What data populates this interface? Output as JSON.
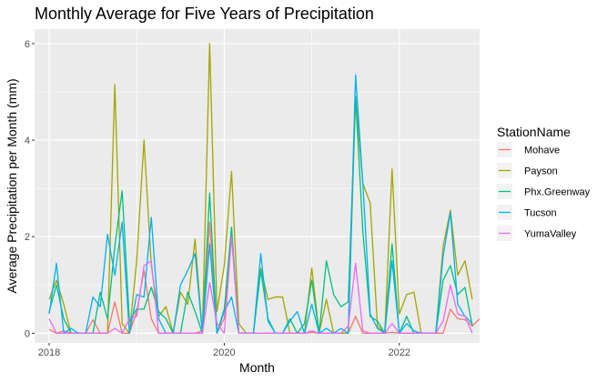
{
  "chart_data": {
    "type": "line",
    "title": "Monthly Average for Five Years of Precipitation",
    "xlabel": "Month",
    "ylabel": "Average Precipitation per Month (mm)",
    "x_start": "2018-01",
    "x_ticks": [
      {
        "label": "2018",
        "month": "2018-01"
      },
      {
        "label": "2020",
        "month": "2020-01"
      },
      {
        "label": "2022",
        "month": "2022-01"
      }
    ],
    "xlim": [
      "2017-11",
      "2022-12"
    ],
    "ylim": [
      -0.2,
      6.3
    ],
    "y_ticks": [
      0,
      2,
      4,
      6
    ],
    "grid": true,
    "legend": {
      "title": "StationName",
      "position": "right"
    },
    "series": [
      {
        "name": "Mohave",
        "color": "#F8766D",
        "values": [
          0.08,
          0.0,
          0.05,
          0.0,
          0.0,
          0.0,
          0.28,
          0.0,
          0.0,
          0.65,
          0.0,
          0.0,
          0.45,
          1.3,
          0.3,
          0.0,
          0.0,
          0.0,
          0.0,
          0.0,
          0.0,
          0.05,
          2.3,
          0.0,
          0.3,
          2.1,
          0.0,
          0.0,
          0.0,
          0.0,
          0.0,
          0.0,
          0.0,
          0.0,
          0.0,
          0.0,
          0.02,
          0.0,
          0.0,
          0.0,
          0.0,
          0.0,
          0.35,
          0.0,
          0.0,
          0.0,
          0.0,
          0.02,
          0.0,
          0.0,
          0.0,
          0.0,
          0.0,
          0.0,
          0.0,
          0.5,
          0.3,
          0.28,
          0.15,
          0.3
        ]
      },
      {
        "name": "Payson",
        "color": "#A3A500",
        "values": [
          0.7,
          1.1,
          0.6,
          0.0,
          0.0,
          0.0,
          0.0,
          0.0,
          0.0,
          5.15,
          0.2,
          0.0,
          1.5,
          4.0,
          1.4,
          0.35,
          0.55,
          0.0,
          0.85,
          0.6,
          1.95,
          0.0,
          6.0,
          0.45,
          1.4,
          3.35,
          0.2,
          0.0,
          0.0,
          1.35,
          0.7,
          0.75,
          0.75,
          0.0,
          0.0,
          0.0,
          1.35,
          0.0,
          0.7,
          0.0,
          0.0,
          0.0,
          4.9,
          3.1,
          2.7,
          0.15,
          0.0,
          3.4,
          0.4,
          0.8,
          0.85,
          0.0,
          0.0,
          0.0,
          1.8,
          2.55,
          1.2,
          1.5,
          0.7
        ]
      },
      {
        "name": "Phx.Greenway",
        "color": "#00BF7D",
        "values": [
          0.45,
          1.0,
          0.3,
          0.0,
          0.0,
          0.0,
          0.0,
          0.85,
          0.3,
          1.8,
          2.95,
          0.25,
          0.5,
          0.5,
          0.95,
          0.45,
          0.3,
          0.0,
          0.0,
          0.85,
          0.45,
          0.0,
          2.9,
          0.0,
          0.5,
          2.2,
          0.0,
          0.0,
          0.0,
          1.3,
          0.3,
          0.0,
          0.0,
          0.3,
          0.0,
          0.2,
          1.1,
          0.0,
          1.5,
          0.8,
          0.55,
          0.65,
          4.9,
          2.1,
          0.35,
          0.25,
          0.0,
          1.85,
          0.0,
          0.35,
          0.0,
          0.0,
          0.0,
          0.0,
          1.1,
          1.4,
          0.8,
          0.95,
          0.15
        ]
      },
      {
        "name": "Tucson",
        "color": "#00B0F6",
        "values": [
          0.4,
          1.45,
          0.0,
          0.1,
          0.0,
          0.0,
          0.75,
          0.55,
          2.05,
          1.2,
          2.3,
          0.0,
          0.8,
          0.75,
          2.4,
          0.3,
          0.0,
          0.0,
          1.0,
          1.3,
          1.65,
          0.0,
          1.85,
          0.0,
          0.45,
          0.75,
          0.0,
          0.0,
          0.0,
          1.65,
          0.25,
          0.0,
          0.0,
          0.25,
          0.45,
          0.0,
          0.6,
          0.0,
          0.1,
          0.0,
          0.1,
          0.0,
          5.35,
          3.1,
          0.4,
          0.1,
          0.0,
          1.5,
          0.0,
          0.2,
          0.05,
          0.0,
          0.0,
          0.0,
          1.6,
          2.5,
          0.6,
          0.35,
          0.2
        ]
      },
      {
        "name": "YumaValley",
        "color": "#E76BF3",
        "values": [
          0.3,
          0.0,
          0.0,
          0.0,
          0.0,
          0.0,
          0.0,
          0.0,
          0.0,
          0.1,
          0.0,
          0.3,
          0.35,
          1.4,
          1.5,
          0.0,
          0.0,
          0.0,
          0.0,
          0.0,
          0.0,
          0.0,
          1.05,
          0.2,
          0.0,
          2.0,
          0.0,
          0.0,
          0.0,
          0.0,
          0.0,
          0.0,
          0.0,
          0.0,
          0.0,
          0.0,
          0.05,
          0.0,
          0.0,
          0.0,
          0.0,
          0.15,
          1.45,
          0.05,
          0.0,
          0.0,
          0.0,
          0.2,
          0.0,
          0.0,
          0.0,
          0.0,
          0.0,
          0.0,
          0.25,
          1.0,
          0.4,
          0.35,
          0.0
        ]
      }
    ]
  }
}
